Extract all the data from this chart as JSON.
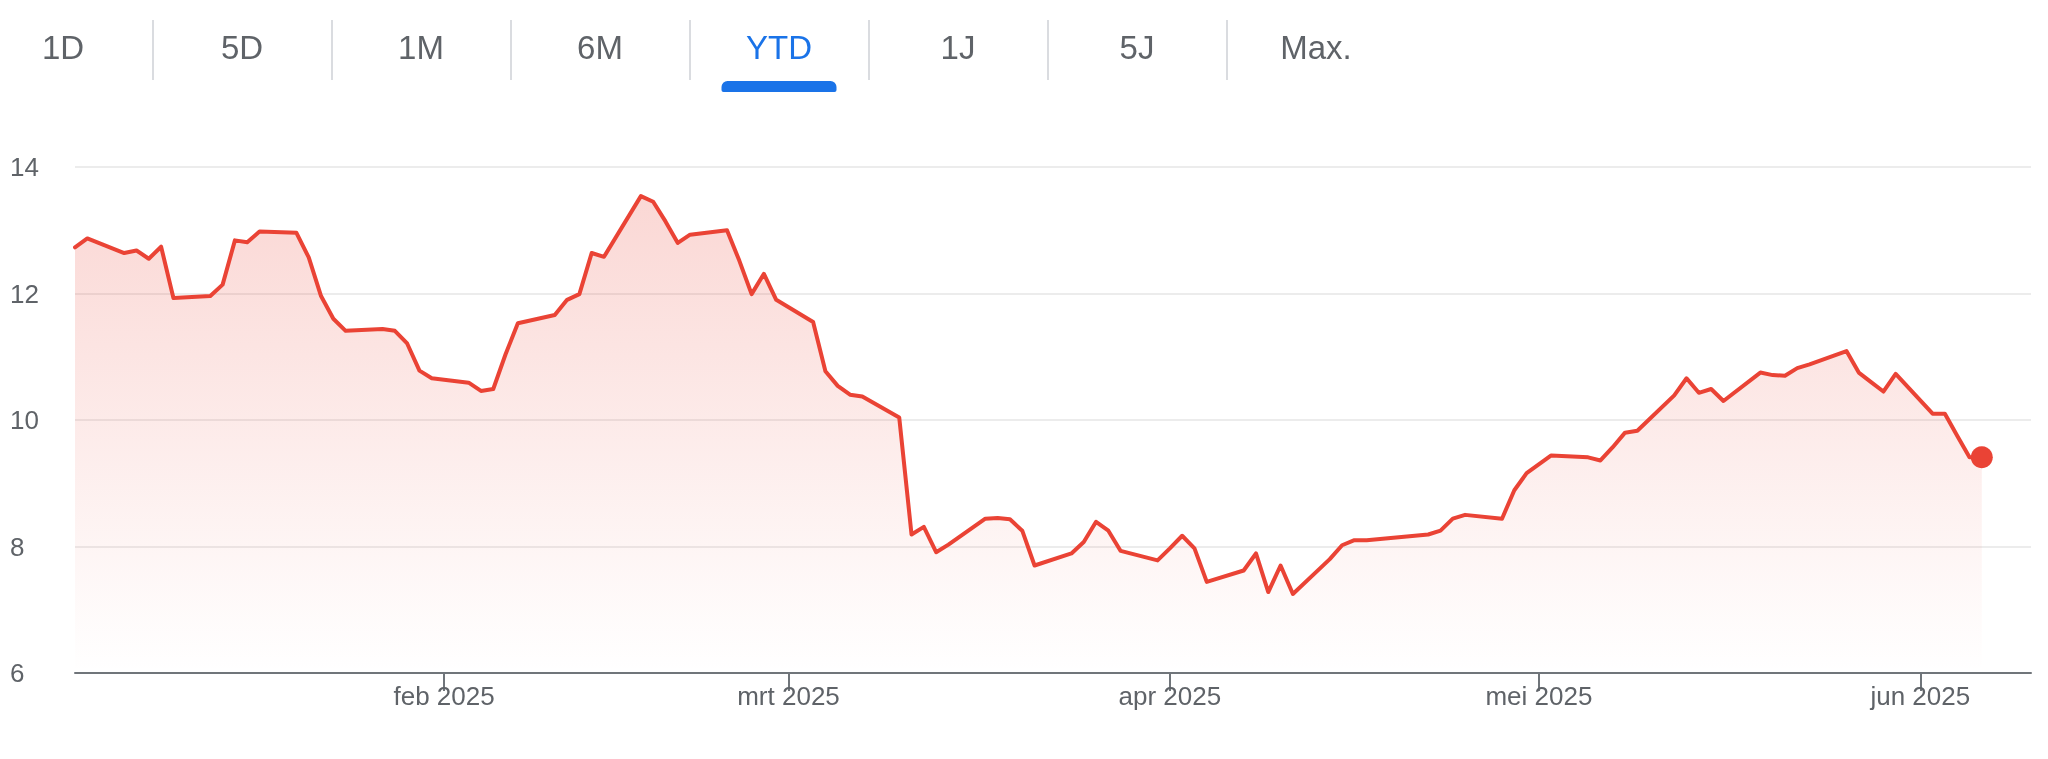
{
  "chart_data": {
    "type": "area",
    "annotations": [
      "1D",
      "5D",
      "1M",
      "6M",
      "YTD",
      "1J",
      "5J",
      "Max."
    ],
    "x": [
      "2025-01-02",
      "2025-01-03",
      "2025-01-06",
      "2025-01-07",
      "2025-01-08",
      "2025-01-09",
      "2025-01-10",
      "2025-01-13",
      "2025-01-14",
      "2025-01-15",
      "2025-01-16",
      "2025-01-17",
      "2025-01-20",
      "2025-01-21",
      "2025-01-22",
      "2025-01-23",
      "2025-01-24",
      "2025-01-27",
      "2025-01-28",
      "2025-01-29",
      "2025-01-30",
      "2025-01-31",
      "2025-02-03",
      "2025-02-04",
      "2025-02-05",
      "2025-02-06",
      "2025-02-07",
      "2025-02-10",
      "2025-02-11",
      "2025-02-12",
      "2025-02-13",
      "2025-02-14",
      "2025-02-17",
      "2025-02-18",
      "2025-02-19",
      "2025-02-20",
      "2025-02-21",
      "2025-02-24",
      "2025-02-25",
      "2025-02-26",
      "2025-02-27",
      "2025-02-28",
      "2025-03-03",
      "2025-03-04",
      "2025-03-05",
      "2025-03-06",
      "2025-03-07",
      "2025-03-10",
      "2025-03-11",
      "2025-03-12",
      "2025-03-13",
      "2025-03-14",
      "2025-03-17",
      "2025-03-18",
      "2025-03-19",
      "2025-03-20",
      "2025-03-21",
      "2025-03-24",
      "2025-03-25",
      "2025-03-26",
      "2025-03-27",
      "2025-03-28",
      "2025-03-31",
      "2025-04-01",
      "2025-04-02",
      "2025-04-03",
      "2025-04-04",
      "2025-04-07",
      "2025-04-08",
      "2025-04-09",
      "2025-04-10",
      "2025-04-11",
      "2025-04-14",
      "2025-04-15",
      "2025-04-16",
      "2025-04-17",
      "2025-04-22",
      "2025-04-23",
      "2025-04-24",
      "2025-04-25",
      "2025-04-28",
      "2025-04-29",
      "2025-04-30",
      "2025-05-02",
      "2025-05-05",
      "2025-05-06",
      "2025-05-07",
      "2025-05-08",
      "2025-05-09",
      "2025-05-12",
      "2025-05-13",
      "2025-05-14",
      "2025-05-15",
      "2025-05-16",
      "2025-05-19",
      "2025-05-20",
      "2025-05-21",
      "2025-05-22",
      "2025-05-23",
      "2025-05-26",
      "2025-05-27",
      "2025-05-28",
      "2025-05-29",
      "2025-05-30",
      "2025-06-02",
      "2025-06-03",
      "2025-06-04",
      "2025-06-05",
      "2025-06-06"
    ],
    "series": [
      {
        "color": "#ea4335",
        "values": [
          12.73,
          12.87,
          12.64,
          12.68,
          12.55,
          12.74,
          11.93,
          11.96,
          12.14,
          12.84,
          12.81,
          12.98,
          12.96,
          12.57,
          11.96,
          11.6,
          11.41,
          11.44,
          11.41,
          11.21,
          10.78,
          10.66,
          10.59,
          10.46,
          10.49,
          11.04,
          11.53,
          11.66,
          11.9,
          11.99,
          12.64,
          12.58,
          13.54,
          13.45,
          13.14,
          12.8,
          12.93,
          13.0,
          12.52,
          11.99,
          12.31,
          11.9,
          11.55,
          10.77,
          10.54,
          10.4,
          10.37,
          10.04,
          8.19,
          8.31,
          7.91,
          8.03,
          8.44,
          8.45,
          8.43,
          8.25,
          7.7,
          7.89,
          8.07,
          8.39,
          8.25,
          7.93,
          7.78,
          7.97,
          8.17,
          7.97,
          7.44,
          7.62,
          7.89,
          7.28,
          7.7,
          7.25,
          7.8,
          8.02,
          8.1,
          8.1,
          8.19,
          8.25,
          8.44,
          8.5,
          8.44,
          8.89,
          9.16,
          9.44,
          9.41,
          9.36,
          9.57,
          9.8,
          9.83,
          10.39,
          10.66,
          10.43,
          10.49,
          10.3,
          10.75,
          10.71,
          10.7,
          10.82,
          10.88,
          11.09,
          10.75,
          10.6,
          10.45,
          10.73,
          10.1,
          10.1,
          9.75,
          9.41,
          9.41
        ]
      }
    ],
    "xlim": [
      "2025-01-02",
      "2025-06-10"
    ],
    "xticks": [
      {
        "value": "2025-02-01",
        "label": "feb 2025"
      },
      {
        "value": "2025-03-01",
        "label": "mrt 2025"
      },
      {
        "value": "2025-04-01",
        "label": "apr 2025"
      },
      {
        "value": "2025-05-01",
        "label": "mei 2025"
      },
      {
        "value": "2025-06-01",
        "label": "jun 2025"
      }
    ],
    "ylim": [
      6,
      14
    ],
    "yticks": [
      6,
      8,
      10,
      12,
      14
    ],
    "grid": "y"
  }
}
